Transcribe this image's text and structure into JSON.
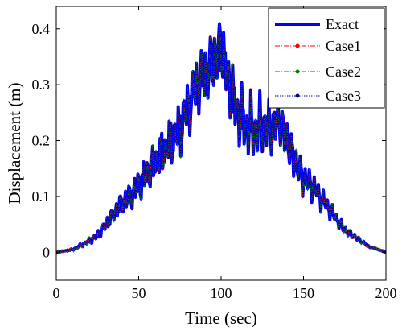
{
  "chart_data": {
    "type": "line",
    "title": "",
    "xlabel": "Time (sec)",
    "ylabel": "Displacement (m)",
    "xlim": [
      0,
      200
    ],
    "ylim": [
      -0.05,
      0.44
    ],
    "grid": false,
    "legend_position": "top-right",
    "x_ticks": [
      {
        "value": 0,
        "label": "0"
      },
      {
        "value": 50,
        "label": "50"
      },
      {
        "value": 100,
        "label": "100"
      },
      {
        "value": 150,
        "label": "150"
      },
      {
        "value": 200,
        "label": "200"
      }
    ],
    "y_ticks": [
      {
        "value": 0,
        "label": "0"
      },
      {
        "value": 0.1,
        "label": "0.1"
      },
      {
        "value": 0.2,
        "label": "0.2"
      },
      {
        "value": 0.3,
        "label": "0.3"
      },
      {
        "value": 0.4,
        "label": "0.4"
      }
    ],
    "x": [
      0,
      10,
      20,
      25,
      30,
      35,
      40,
      45,
      50,
      55,
      60,
      65,
      70,
      75,
      80,
      85,
      90,
      95,
      100,
      105,
      110,
      115,
      120,
      125,
      130,
      135,
      140,
      145,
      150,
      155,
      160,
      165,
      170,
      175,
      180,
      185,
      190,
      195,
      200
    ],
    "series": [
      {
        "name": "Exact",
        "color": "#0000ff",
        "style": "solid",
        "values": [
          0,
          0.005,
          0.02,
          0.03,
          0.05,
          0.07,
          0.09,
          0.1,
          0.12,
          0.14,
          0.16,
          0.18,
          0.2,
          0.22,
          0.26,
          0.3,
          0.32,
          0.34,
          0.37,
          0.3,
          0.25,
          0.23,
          0.22,
          0.23,
          0.22,
          0.24,
          0.2,
          0.16,
          0.13,
          0.12,
          0.1,
          0.08,
          0.06,
          0.04,
          0.03,
          0.02,
          0.01,
          0.005,
          0
        ]
      },
      {
        "name": "Case1",
        "color": "#ff0000",
        "style": "dash-dot",
        "marker": "dot",
        "values": [
          0,
          0.005,
          0.02,
          0.03,
          0.05,
          0.07,
          0.09,
          0.1,
          0.12,
          0.14,
          0.16,
          0.18,
          0.2,
          0.22,
          0.26,
          0.3,
          0.32,
          0.34,
          0.37,
          0.3,
          0.25,
          0.23,
          0.22,
          0.23,
          0.22,
          0.24,
          0.2,
          0.16,
          0.13,
          0.12,
          0.1,
          0.08,
          0.06,
          0.04,
          0.03,
          0.02,
          0.01,
          0.005,
          0
        ]
      },
      {
        "name": "Case2",
        "color": "#008000",
        "style": "dash-dot",
        "marker": "dot",
        "values": [
          0,
          0.005,
          0.02,
          0.03,
          0.05,
          0.07,
          0.09,
          0.1,
          0.12,
          0.14,
          0.16,
          0.18,
          0.2,
          0.22,
          0.26,
          0.3,
          0.32,
          0.34,
          0.37,
          0.3,
          0.25,
          0.23,
          0.22,
          0.23,
          0.22,
          0.24,
          0.2,
          0.16,
          0.13,
          0.12,
          0.1,
          0.08,
          0.06,
          0.04,
          0.03,
          0.02,
          0.01,
          0.005,
          0
        ]
      },
      {
        "name": "Case3",
        "color": "#000080",
        "style": "dotted",
        "marker": "dot",
        "values": [
          0,
          0.005,
          0.02,
          0.03,
          0.05,
          0.07,
          0.09,
          0.1,
          0.12,
          0.14,
          0.16,
          0.18,
          0.2,
          0.22,
          0.26,
          0.3,
          0.32,
          0.34,
          0.37,
          0.3,
          0.25,
          0.23,
          0.22,
          0.23,
          0.22,
          0.24,
          0.2,
          0.16,
          0.13,
          0.12,
          0.1,
          0.08,
          0.06,
          0.04,
          0.03,
          0.02,
          0.01,
          0.005,
          0
        ]
      }
    ]
  }
}
